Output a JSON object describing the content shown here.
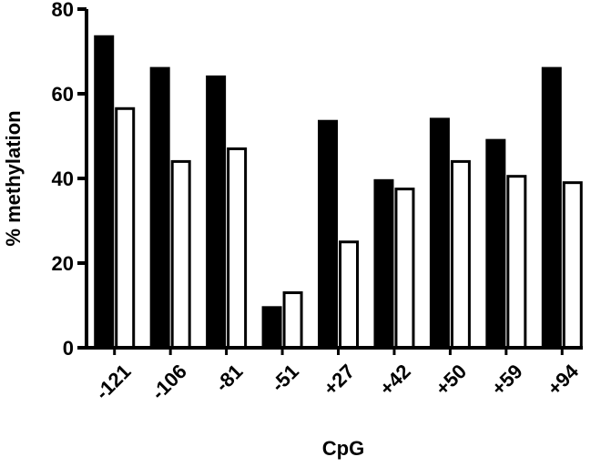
{
  "chart_data": {
    "type": "bar",
    "x_label": "CpG",
    "y_label": "% methylation",
    "categories": [
      "-121",
      "-106",
      "-81",
      "-51",
      "+27",
      "+42",
      "+50",
      "+59",
      "+94"
    ],
    "series": [
      {
        "color": "#000000",
        "values": [
          73.5,
          66,
          64,
          9.5,
          53.5,
          39.5,
          54,
          49,
          66
        ]
      },
      {
        "color": "#ffffff",
        "values": [
          56.5,
          44,
          47,
          13,
          25,
          37.5,
          44,
          40.5,
          39
        ]
      }
    ],
    "ylim": [
      0,
      80
    ],
    "yticks": [
      0,
      20,
      40,
      60,
      80
    ],
    "grid": false
  }
}
